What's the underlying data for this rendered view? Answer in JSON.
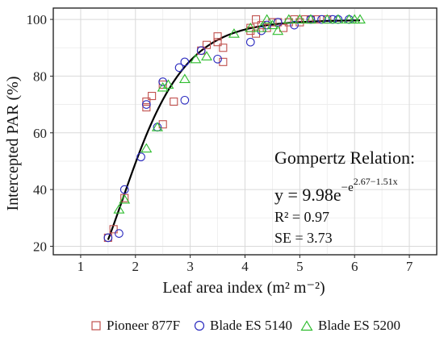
{
  "chart_data": {
    "type": "scatter",
    "xlabel": "Leaf area index (m² m⁻²)",
    "ylabel": "Intercepted PAR (%)",
    "xlim": [
      0.5,
      7.5
    ],
    "ylim": [
      17,
      104
    ],
    "xticks": [
      1,
      2,
      3,
      4,
      5,
      6,
      7
    ],
    "yticks": [
      20,
      40,
      60,
      80,
      100
    ],
    "grid": true,
    "legend_position": "bottom",
    "series": [
      {
        "name": "Pioneer 877F",
        "marker": "square",
        "color": "#c0504d",
        "points": [
          [
            1.5,
            23
          ],
          [
            1.6,
            26
          ],
          [
            1.8,
            37
          ],
          [
            2.2,
            69
          ],
          [
            2.2,
            71
          ],
          [
            2.3,
            73
          ],
          [
            2.5,
            63
          ],
          [
            2.5,
            77
          ],
          [
            2.7,
            71
          ],
          [
            3.2,
            89
          ],
          [
            3.3,
            91
          ],
          [
            3.5,
            94
          ],
          [
            3.5,
            92
          ],
          [
            3.6,
            90
          ],
          [
            3.6,
            85
          ],
          [
            4.1,
            96
          ],
          [
            4.1,
            97
          ],
          [
            4.2,
            95
          ],
          [
            4.2,
            100
          ],
          [
            4.3,
            98
          ],
          [
            4.4,
            97
          ],
          [
            4.5,
            99
          ],
          [
            4.6,
            99
          ],
          [
            4.7,
            97
          ],
          [
            4.8,
            99
          ],
          [
            4.9,
            100
          ],
          [
            5.0,
            99
          ],
          [
            5.1,
            100
          ],
          [
            5.2,
            100
          ],
          [
            5.3,
            100
          ],
          [
            5.5,
            100
          ]
        ]
      },
      {
        "name": "Blade ES 5140",
        "marker": "circle",
        "color": "#2b2bbf",
        "points": [
          [
            1.5,
            23
          ],
          [
            1.7,
            24.5
          ],
          [
            1.8,
            40
          ],
          [
            2.1,
            51.5
          ],
          [
            2.2,
            70
          ],
          [
            2.4,
            62
          ],
          [
            2.5,
            78
          ],
          [
            2.8,
            83
          ],
          [
            2.9,
            85
          ],
          [
            2.9,
            71.5
          ],
          [
            3.2,
            89
          ],
          [
            3.5,
            86
          ],
          [
            4.1,
            92
          ],
          [
            4.3,
            96
          ],
          [
            4.4,
            98
          ],
          [
            4.6,
            99
          ],
          [
            4.9,
            98
          ],
          [
            5.2,
            100
          ],
          [
            5.4,
            100
          ],
          [
            5.6,
            100
          ],
          [
            5.7,
            100
          ],
          [
            5.9,
            100
          ]
        ]
      },
      {
        "name": "Blade ES 5200",
        "marker": "triangle",
        "color": "#2ebd2e",
        "points": [
          [
            1.7,
            33
          ],
          [
            1.8,
            36.5
          ],
          [
            2.2,
            54.5
          ],
          [
            2.4,
            62
          ],
          [
            2.5,
            76
          ],
          [
            2.6,
            77
          ],
          [
            2.9,
            79
          ],
          [
            3.1,
            86
          ],
          [
            3.3,
            87
          ],
          [
            3.8,
            95
          ],
          [
            4.1,
            97
          ],
          [
            4.3,
            97
          ],
          [
            4.4,
            100
          ],
          [
            4.5,
            98
          ],
          [
            4.6,
            96
          ],
          [
            4.8,
            100
          ],
          [
            5.0,
            100
          ],
          [
            5.2,
            100
          ],
          [
            5.5,
            100
          ],
          [
            5.7,
            100
          ],
          [
            5.9,
            100
          ],
          [
            6.0,
            100
          ],
          [
            6.1,
            100
          ]
        ]
      }
    ],
    "fit": {
      "x_range": [
        1.5,
        6.1
      ],
      "a": 9.98,
      "b": 2.67,
      "c": 1.51
    },
    "annotations": {
      "title": "Gompertz Relation:",
      "equation_main": "y = 9.98e",
      "equation_exponent_main": "−e",
      "equation_exponent_sup": "2.67−1.51x",
      "r2": "R² = 0.97",
      "se": "SE = 3.73"
    }
  }
}
